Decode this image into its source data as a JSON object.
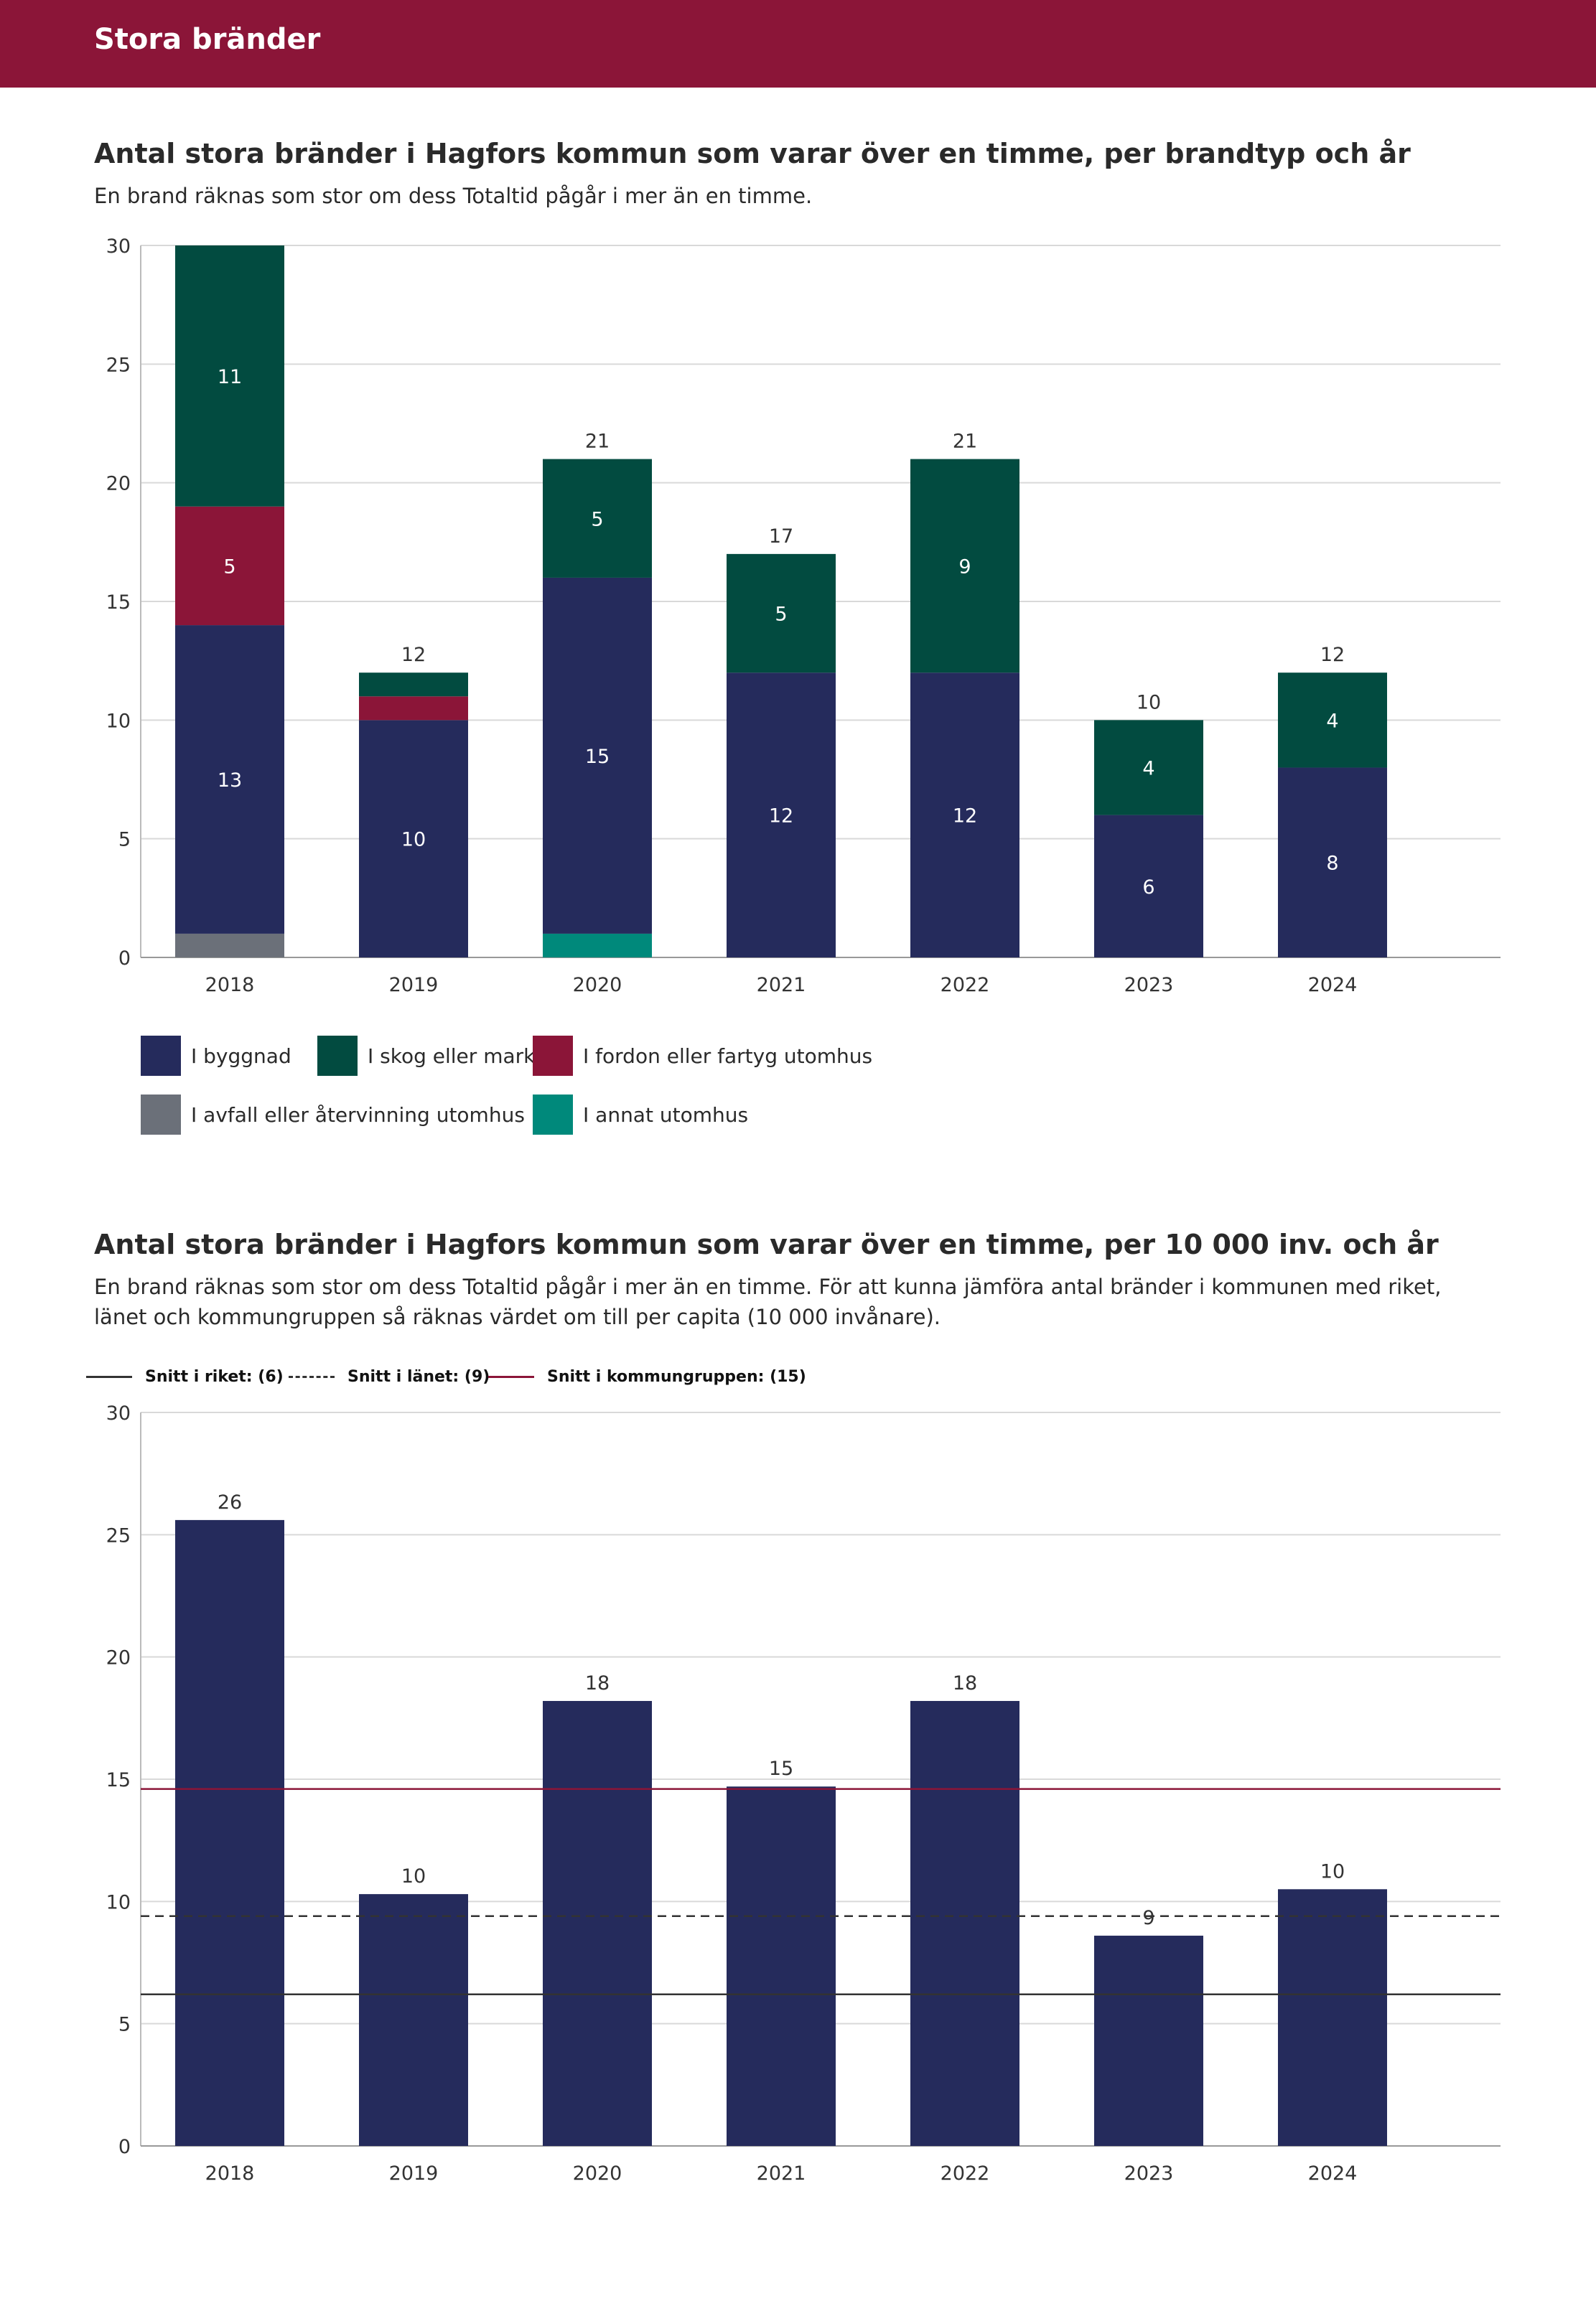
{
  "header": {
    "title": "Stora bränder"
  },
  "chart1": {
    "title": "Antal stora bränder i Hagfors kommun som varar över en timme, per brandtyp och år",
    "subtitle": "En brand räknas som stor om dess Totaltid pågår i mer än en timme."
  },
  "chart2": {
    "title": "Antal stora bränder i Hagfors kommun som varar över en timme, per 10 000 inv. och år",
    "subtitle": "En brand räknas som stor om dess Totaltid pågår i mer än en timme. För att kunna jämföra antal bränder i kommunen med riket, länet och kommungruppen så räknas värdet om till per capita (10 000 invånare)."
  },
  "legend1": {
    "byggnad": "I byggnad",
    "skog": "I skog eller mark",
    "fordon": "I fordon eller fartyg utomhus",
    "avfall": "I avfall eller återvinning utomhus",
    "annat": "I annat utomhus"
  },
  "legend2": {
    "riket": "Snitt i riket: (6)",
    "lanet": "Snitt i länet: (9)",
    "kommungruppen": "Snitt i kommungruppen: (15)"
  },
  "colors": {
    "header": "#8b1538",
    "byggnad": "#252b5c",
    "skog": "#024b40",
    "fordon": "#8b1538",
    "avfall": "#6b7079",
    "annat": "#00897b",
    "grid": "#d9d9d9",
    "riket_line": "#333333",
    "lanet_line": "#333333",
    "kommungrupp_line": "#8b1538"
  },
  "chart_data": [
    {
      "type": "bar",
      "stacked": true,
      "title": "Antal stora bränder i Hagfors kommun som varar över en timme, per brandtyp och år",
      "categories": [
        "2018",
        "2019",
        "2020",
        "2021",
        "2022",
        "2023",
        "2024"
      ],
      "ylim": [
        0,
        30
      ],
      "yticks": [
        0,
        5,
        10,
        15,
        20,
        25,
        30
      ],
      "series": [
        {
          "key": "avfall",
          "name": "I avfall eller återvinning utomhus",
          "values": [
            1,
            0,
            0,
            0,
            0,
            0,
            0
          ]
        },
        {
          "key": "annat",
          "name": "I annat utomhus",
          "values": [
            0,
            0,
            1,
            0,
            0,
            0,
            0
          ]
        },
        {
          "key": "byggnad",
          "name": "I byggnad",
          "values": [
            13,
            10,
            15,
            12,
            12,
            6,
            8
          ]
        },
        {
          "key": "fordon",
          "name": "I fordon eller fartyg utomhus",
          "values": [
            5,
            1,
            0,
            0,
            0,
            0,
            0
          ]
        },
        {
          "key": "skog",
          "name": "I skog eller mark",
          "values": [
            11,
            1,
            5,
            5,
            9,
            4,
            4
          ]
        }
      ],
      "segment_labels_shown_min": 4,
      "totals": [
        null,
        12,
        21,
        17,
        21,
        10,
        12
      ],
      "grid": true
    },
    {
      "type": "bar",
      "title": "Antal stora bränder i Hagfors kommun som varar över en timme, per 10 000 inv. och år",
      "categories": [
        "2018",
        "2019",
        "2020",
        "2021",
        "2022",
        "2023",
        "2024"
      ],
      "values": [
        25.6,
        10.3,
        18.2,
        14.7,
        18.2,
        8.6,
        10.5
      ],
      "data_labels": [
        "26",
        "10",
        "18",
        "15",
        "18",
        "9",
        "10"
      ],
      "ylim": [
        0,
        30
      ],
      "yticks": [
        0,
        5,
        10,
        15,
        20,
        25,
        30
      ],
      "reference_lines": [
        {
          "key": "riket",
          "name": "Snitt i riket: (6)",
          "value": 6.2,
          "style": "solid"
        },
        {
          "key": "lanet",
          "name": "Snitt i länet: (9)",
          "value": 9.4,
          "style": "dashed"
        },
        {
          "key": "kommungruppen",
          "name": "Snitt i kommungruppen: (15)",
          "value": 14.6,
          "style": "solid"
        }
      ],
      "grid": true
    }
  ]
}
